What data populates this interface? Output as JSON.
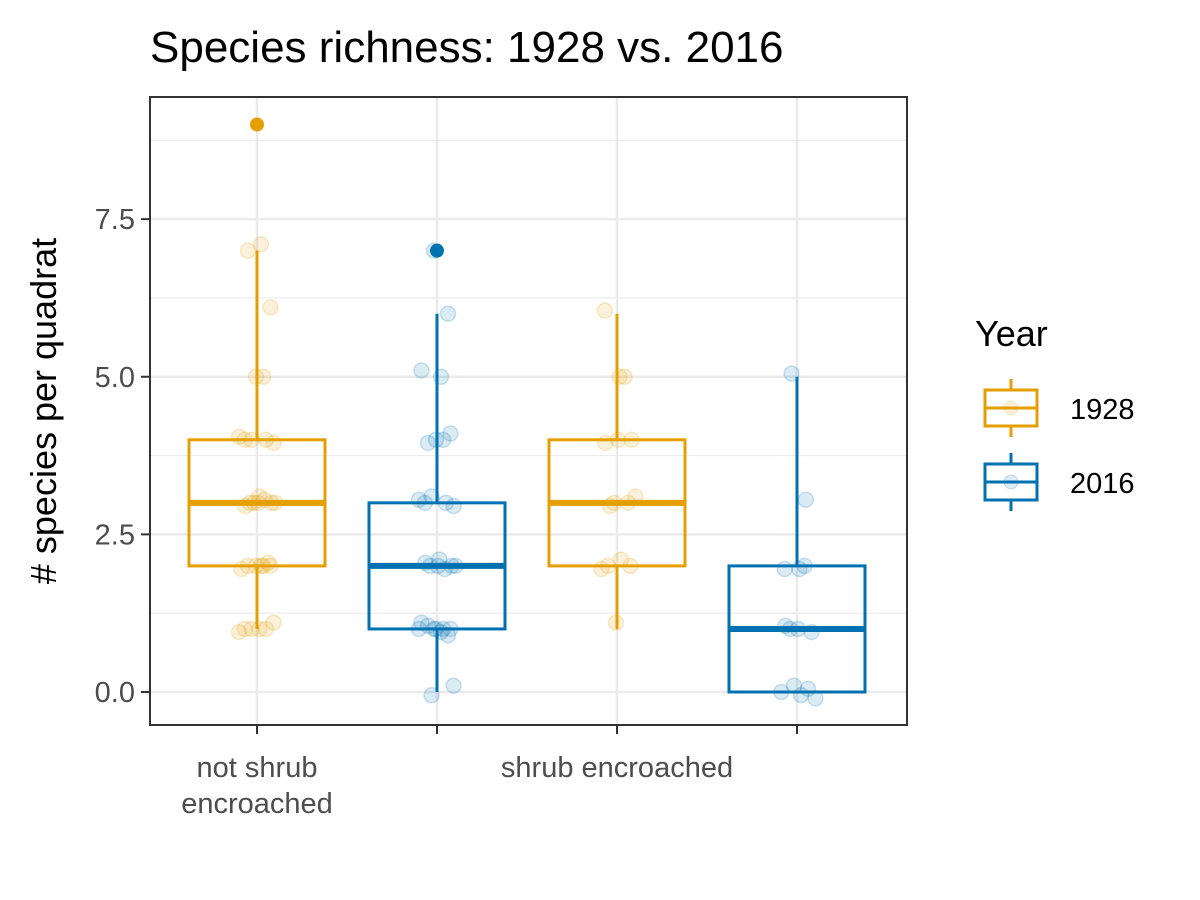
{
  "chart_data": {
    "type": "box",
    "title": "Species richness: 1928 vs. 2016",
    "xlabel": "",
    "ylabel": "# species per quadrat",
    "ylim": [
      -0.5,
      9.3
    ],
    "y_ticks": [
      "0.0",
      "2.5",
      "5.0",
      "7.5"
    ],
    "y_tick_values": [
      0,
      2.5,
      5,
      7.5
    ],
    "categories": [
      "not shrub encroached",
      "shrub encroached"
    ],
    "category_lines": [
      [
        "not shrub",
        "encroached"
      ],
      [
        "shrub encroached"
      ]
    ],
    "grid": true,
    "legend": {
      "title": "Year",
      "placement": "right",
      "entries": [
        "1928",
        "2016"
      ]
    },
    "series": [
      {
        "name": "1928",
        "color": "#E69F00",
        "boxes": [
          {
            "category": "not shrub encroached",
            "min": 1,
            "q1": 2,
            "median": 3,
            "q3": 4,
            "max": 7,
            "outliers": [
              9
            ],
            "points": [
              1,
              1,
              1,
              1,
              1.1,
              0.95,
              2,
              2,
              2,
              2,
              2,
              1.95,
              2.05,
              3,
              3,
              3,
              3,
              3,
              2.95,
              3.05,
              3.1,
              4,
              4,
              4,
              3.95,
              4.05,
              5,
              5,
              6.1,
              7,
              7.1
            ]
          },
          {
            "category": "shrub encroached",
            "min": 1,
            "q1": 2,
            "median": 3,
            "q3": 4,
            "max": 6,
            "outliers": [],
            "points": [
              1.1,
              2,
              2,
              2.1,
              1.95,
              3,
              3,
              3.1,
              2.95,
              4,
              4,
              3.95,
              5,
              5,
              6.05
            ]
          }
        ]
      },
      {
        "name": "2016",
        "color": "#0072B2",
        "boxes": [
          {
            "category": "not shrub encroached",
            "min": 0,
            "q1": 1,
            "median": 2,
            "q3": 3,
            "max": 6,
            "outliers": [
              7
            ],
            "points": [
              -0.05,
              0.1,
              1,
              1,
              1,
              1,
              1.05,
              0.95,
              1.1,
              0.9,
              1,
              2,
              2,
              2,
              2,
              2.05,
              1.95,
              2.1,
              3,
              3,
              3.1,
              2.95,
              3.05,
              4,
              4,
              4.1,
              3.95,
              5,
              5.1,
              6,
              7
            ]
          },
          {
            "category": "shrub encroached",
            "min": 0,
            "q1": 0,
            "median": 1,
            "q3": 2,
            "max": 5,
            "outliers": [],
            "points": [
              -0.05,
              0,
              0.05,
              0.1,
              -0.1,
              1,
              1,
              0.95,
              1.05,
              2,
              1.95,
              1.95,
              3.05,
              5.05
            ]
          }
        ]
      }
    ]
  }
}
